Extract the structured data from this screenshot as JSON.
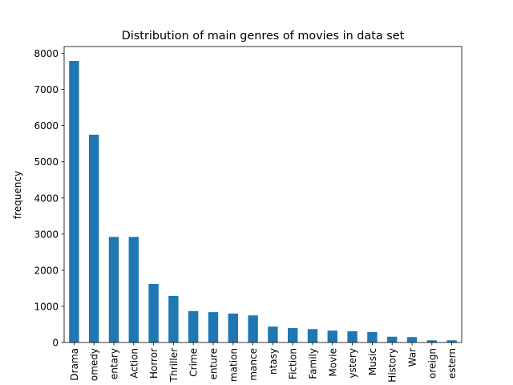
{
  "chart_data": {
    "type": "bar",
    "title": "Distribution of main genres of movies in data set",
    "xlabel": "",
    "ylabel": "frequency",
    "categories": [
      "Drama",
      "Comedy",
      "Documentary",
      "Action",
      "Horror",
      "Thriller",
      "Crime",
      "Adventure",
      "Animation",
      "Romance",
      "Fantasy",
      "Science Fiction",
      "Family",
      "TV Movie",
      "Mystery",
      "Music",
      "History",
      "War",
      "Foreign",
      "Western"
    ],
    "category_labels_visible": [
      "Drama",
      "omedy",
      "entary",
      "Action",
      "Horror",
      "Thriller",
      "Crime",
      "enture",
      "mation",
      "mance",
      "ntasy",
      "Fiction",
      "Family",
      "Movie",
      "ystery",
      "Music",
      "History",
      "War",
      "oreign",
      "estern"
    ],
    "values": [
      7790,
      5750,
      2920,
      2920,
      1620,
      1290,
      870,
      840,
      800,
      750,
      440,
      400,
      370,
      330,
      310,
      290,
      160,
      150,
      60,
      60
    ],
    "ylim": [
      0,
      8190
    ],
    "yticks": [
      0,
      1000,
      2000,
      3000,
      4000,
      5000,
      6000,
      7000,
      8000
    ],
    "bar_color": "#1f77b4",
    "grid": false,
    "legend": "none"
  }
}
